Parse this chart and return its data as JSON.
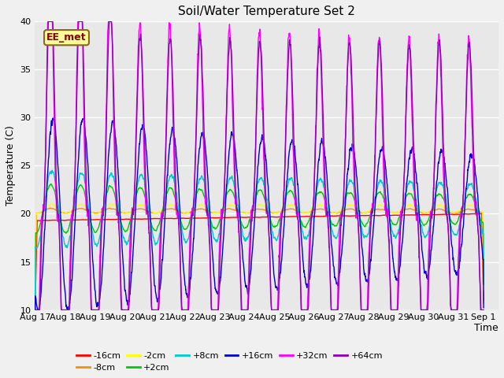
{
  "title": "Soil/Water Temperature Set 2",
  "xlabel": "Time",
  "ylabel": "Temperature (C)",
  "ylim": [
    10,
    40
  ],
  "xlim_days": 15.5,
  "plot_bg": "#e8e8e8",
  "fig_bg": "#f0f0f0",
  "annotation_text": "EE_met",
  "annotation_fg": "#8B0000",
  "annotation_bg": "#ffff99",
  "annotation_border": "#8B6914",
  "series": [
    {
      "label": "-16cm",
      "color": "#ff0000"
    },
    {
      "label": "-8cm",
      "color": "#ff8c00"
    },
    {
      "label": "-2cm",
      "color": "#ffff00"
    },
    {
      "label": "+2cm",
      "color": "#00cc00"
    },
    {
      "label": "+8cm",
      "color": "#00cccc"
    },
    {
      "label": "+16cm",
      "color": "#0000cc"
    },
    {
      "label": "+32cm",
      "color": "#ff00ff"
    },
    {
      "label": "+64cm",
      "color": "#8800bb"
    }
  ],
  "tick_labels": [
    "Aug 17",
    "Aug 18",
    "Aug 19",
    "Aug 20",
    "Aug 21",
    "Aug 22",
    "Aug 23",
    "Aug 24",
    "Aug 25",
    "Aug 26",
    "Aug 27",
    "Aug 28",
    "Aug 29",
    "Aug 30",
    "Aug 31",
    "Sep 1"
  ],
  "tick_positions": [
    0,
    1,
    2,
    3,
    4,
    5,
    6,
    7,
    8,
    9,
    10,
    11,
    12,
    13,
    14,
    15
  ],
  "yticks": [
    10,
    15,
    20,
    25,
    30,
    35,
    40
  ],
  "legend_row1": [
    "-16cm",
    "-8cm",
    "-2cm",
    "+2cm",
    "+8cm",
    "+16cm"
  ],
  "legend_row2": [
    "+32cm",
    "+64cm"
  ]
}
